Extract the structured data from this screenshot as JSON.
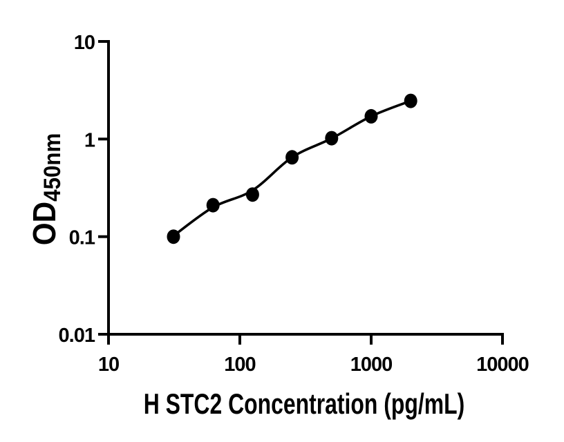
{
  "figure": {
    "background": "#ffffff",
    "ink_color": "#000000"
  },
  "chart_data": {
    "type": "scatter",
    "title": "",
    "xlabel": "H STC2 Concentration (pg/mL)",
    "ylabel_main": "OD",
    "ylabel_sub": "450nm",
    "x_scale": "log",
    "y_scale": "log",
    "xlim": [
      10,
      10000
    ],
    "ylim": [
      0.01,
      10
    ],
    "x_ticks": [
      10,
      100,
      1000,
      10000
    ],
    "y_ticks": [
      0.01,
      0.1,
      1,
      10
    ],
    "x_tick_labels": [
      "10",
      "100",
      "1000",
      "10000"
    ],
    "y_tick_labels": [
      "0.01",
      "0.1",
      "1",
      "10"
    ],
    "grid": false,
    "legend": false,
    "series": [
      {
        "name": "standard-points",
        "marker": "filled-circle",
        "color": "#000000",
        "points": [
          {
            "x": 31.25,
            "y": 0.1
          },
          {
            "x": 62.5,
            "y": 0.21
          },
          {
            "x": 125,
            "y": 0.27
          },
          {
            "x": 250,
            "y": 0.65
          },
          {
            "x": 500,
            "y": 1.02
          },
          {
            "x": 1000,
            "y": 1.71
          },
          {
            "x": 2000,
            "y": 2.46
          }
        ]
      }
    ],
    "trend_line": {
      "name": "fitted-curve",
      "color": "#000000",
      "points": [
        {
          "x": 31.25,
          "y": 0.102
        },
        {
          "x": 62.5,
          "y": 0.2
        },
        {
          "x": 125,
          "y": 0.298
        },
        {
          "x": 250,
          "y": 0.65
        },
        {
          "x": 500,
          "y": 1.015
        },
        {
          "x": 1000,
          "y": 1.71
        },
        {
          "x": 2000,
          "y": 2.46
        }
      ]
    }
  }
}
